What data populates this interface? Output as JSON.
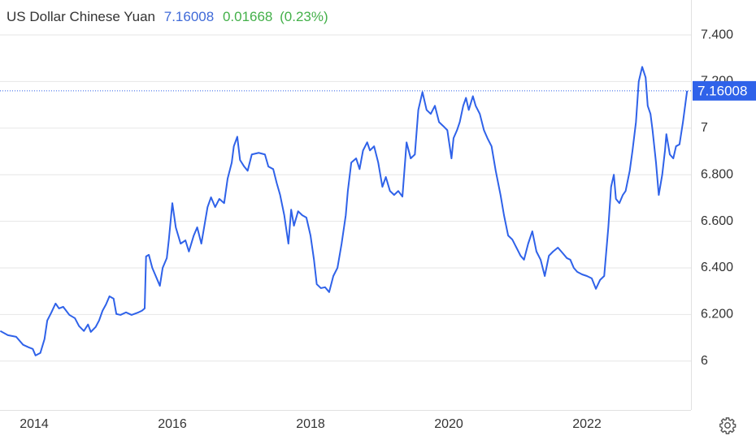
{
  "chart_data": {
    "type": "line",
    "title": "US Dollar Chinese Yuan",
    "change": 0.01668,
    "change_percent": "(0.23%)",
    "x": [
      2013.51,
      2013.62,
      2013.74,
      2013.84,
      2013.92,
      2013.98,
      2014.02,
      2014.09,
      2014.15,
      2014.19,
      2014.25,
      2014.31,
      2014.36,
      2014.42,
      2014.51,
      2014.59,
      2014.65,
      2014.72,
      2014.78,
      2014.82,
      2014.89,
      2014.94,
      2014.99,
      2015.04,
      2015.09,
      2015.15,
      2015.19,
      2015.25,
      2015.33,
      2015.41,
      2015.51,
      2015.56,
      2015.6,
      2015.62,
      2015.66,
      2015.71,
      2015.76,
      2015.82,
      2015.86,
      2015.92,
      2015.95,
      2016.0,
      2016.05,
      2016.12,
      2016.19,
      2016.24,
      2016.31,
      2016.36,
      2016.42,
      2016.51,
      2016.56,
      2016.62,
      2016.68,
      2016.75,
      2016.8,
      2016.86,
      2016.89,
      2016.94,
      2016.98,
      2017.04,
      2017.09,
      2017.15,
      2017.25,
      2017.34,
      2017.39,
      2017.46,
      2017.51,
      2017.56,
      2017.62,
      2017.68,
      2017.72,
      2017.76,
      2017.82,
      2017.88,
      2017.94,
      2018.0,
      2018.05,
      2018.09,
      2018.15,
      2018.21,
      2018.27,
      2018.33,
      2018.39,
      2018.45,
      2018.51,
      2018.54,
      2018.59,
      2018.66,
      2018.71,
      2018.76,
      2018.82,
      2018.86,
      2018.92,
      2018.98,
      2019.04,
      2019.09,
      2019.15,
      2019.21,
      2019.27,
      2019.33,
      2019.39,
      2019.45,
      2019.51,
      2019.56,
      2019.62,
      2019.68,
      2019.74,
      2019.8,
      2019.86,
      2019.92,
      2019.98,
      2020.04,
      2020.07,
      2020.12,
      2020.16,
      2020.21,
      2020.25,
      2020.29,
      2020.35,
      2020.39,
      2020.45,
      2020.51,
      2020.56,
      2020.62,
      2020.68,
      2020.75,
      2020.8,
      2020.86,
      2020.92,
      2020.98,
      2021.04,
      2021.09,
      2021.15,
      2021.21,
      2021.27,
      2021.33,
      2021.39,
      2021.45,
      2021.51,
      2021.58,
      2021.65,
      2021.71,
      2021.76,
      2021.81,
      2021.86,
      2021.93,
      2022.0,
      2022.07,
      2022.13,
      2022.19,
      2022.25,
      2022.31,
      2022.35,
      2022.39,
      2022.42,
      2022.47,
      2022.52,
      2022.56,
      2022.62,
      2022.66,
      2022.71,
      2022.75,
      2022.8,
      2022.85,
      2022.88,
      2022.92,
      2022.95,
      2023.0,
      2023.04,
      2023.09,
      2023.13,
      2023.15,
      2023.2,
      2023.25,
      2023.29,
      2023.34,
      2023.39,
      2023.45
    ],
    "series": [
      {
        "color": "#2f62e9",
        "values": [
          6.129,
          6.111,
          6.104,
          6.07,
          6.059,
          6.052,
          6.024,
          6.035,
          6.094,
          6.174,
          6.209,
          6.247,
          6.226,
          6.233,
          6.198,
          6.184,
          6.15,
          6.129,
          6.157,
          6.125,
          6.146,
          6.174,
          6.216,
          6.243,
          6.278,
          6.268,
          6.202,
          6.198,
          6.209,
          6.198,
          6.209,
          6.216,
          6.226,
          6.449,
          6.456,
          6.4,
          6.365,
          6.323,
          6.4,
          6.442,
          6.522,
          6.678,
          6.574,
          6.504,
          6.518,
          6.47,
          6.539,
          6.574,
          6.504,
          6.661,
          6.703,
          6.661,
          6.696,
          6.678,
          6.783,
          6.852,
          6.922,
          6.963,
          6.863,
          6.835,
          6.817,
          6.887,
          6.894,
          6.887,
          6.835,
          6.824,
          6.765,
          6.713,
          6.626,
          6.504,
          6.65,
          6.581,
          6.643,
          6.626,
          6.616,
          6.539,
          6.435,
          6.33,
          6.313,
          6.317,
          6.296,
          6.365,
          6.4,
          6.504,
          6.626,
          6.73,
          6.852,
          6.87,
          6.824,
          6.904,
          6.939,
          6.904,
          6.922,
          6.852,
          6.748,
          6.79,
          6.73,
          6.713,
          6.73,
          6.706,
          6.939,
          6.87,
          6.887,
          7.078,
          7.155,
          7.078,
          7.061,
          7.096,
          7.026,
          7.009,
          6.991,
          6.87,
          6.957,
          6.991,
          7.026,
          7.096,
          7.13,
          7.078,
          7.137,
          7.096,
          7.061,
          6.991,
          6.957,
          6.922,
          6.817,
          6.713,
          6.626,
          6.539,
          6.522,
          6.487,
          6.452,
          6.435,
          6.504,
          6.557,
          6.47,
          6.435,
          6.365,
          6.452,
          6.47,
          6.487,
          6.463,
          6.442,
          6.435,
          6.4,
          6.383,
          6.372,
          6.365,
          6.355,
          6.31,
          6.348,
          6.365,
          6.574,
          6.748,
          6.8,
          6.696,
          6.678,
          6.713,
          6.73,
          6.817,
          6.904,
          7.026,
          7.2,
          7.263,
          7.217,
          7.096,
          7.061,
          6.991,
          6.852,
          6.713,
          6.8,
          6.904,
          6.974,
          6.887,
          6.87,
          6.922,
          6.93,
          7.026,
          7.16008
        ]
      }
    ],
    "xlim": [
      2013.506,
      2023.506
    ],
    "xticks": [
      2014,
      2016,
      2018,
      2020,
      2022
    ],
    "ylim": [
      5.79,
      7.55
    ],
    "yticks": [
      6,
      {
        "value": 6.2,
        "label": "6.200"
      },
      {
        "value": 6.4,
        "label": "6.400"
      },
      {
        "value": 6.6,
        "label": "6.600"
      },
      {
        "value": 6.8,
        "label": "6.800"
      },
      7,
      {
        "value": 7.2,
        "label": "7.200"
      },
      {
        "value": 7.4,
        "label": "7.400"
      }
    ],
    "grid": true
  }
}
